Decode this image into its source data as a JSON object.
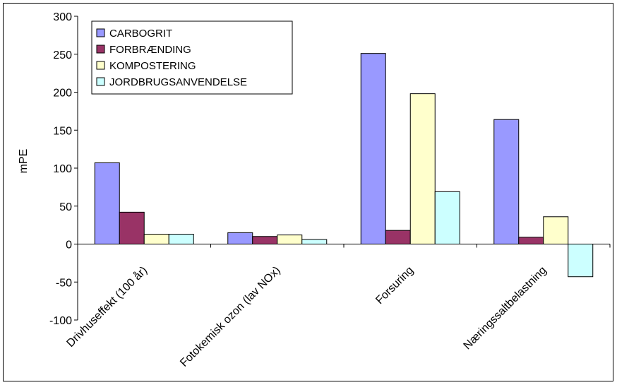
{
  "chart_data": {
    "type": "bar",
    "title": "",
    "xlabel": "",
    "ylabel": "mPE",
    "ylim": [
      -100,
      300
    ],
    "yticks": [
      -100,
      -50,
      0,
      50,
      100,
      150,
      200,
      250,
      300
    ],
    "grid": false,
    "legend_position": "top-left",
    "categories": [
      "Drivhuseffekt (100 år)",
      "Fotokemisk ozon (lav NOx)",
      "Forsuring",
      "Næringssaltbelastning"
    ],
    "series": [
      {
        "name": "CARBOGRIT",
        "color": "#9999ff",
        "values": [
          107,
          15,
          251,
          164
        ]
      },
      {
        "name": "FORBRÆNDING",
        "color": "#993366",
        "values": [
          42,
          10,
          18,
          9
        ]
      },
      {
        "name": "KOMPOSTERING",
        "color": "#ffffcc",
        "values": [
          13,
          12,
          198,
          36
        ]
      },
      {
        "name": "JORDBRUGSANVENDELSE",
        "color": "#ccffff",
        "values": [
          13,
          6,
          69,
          -43
        ]
      }
    ]
  }
}
